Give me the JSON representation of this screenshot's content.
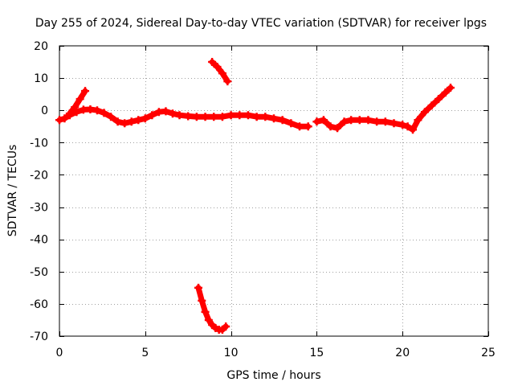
{
  "chart_data": {
    "type": "scatter",
    "title": "Day 255 of 2024, Sidereal Day-to-day VTEC variation (SDTVAR) for receiver lpgs",
    "xlabel": "GPS time / hours",
    "ylabel": "SDTVAR / TECUs",
    "xlim": [
      0,
      25
    ],
    "ylim": [
      -70,
      20
    ],
    "xticks": [
      0,
      5,
      10,
      15,
      20,
      25
    ],
    "yticks": [
      20,
      10,
      0,
      -10,
      -20,
      -30,
      -40,
      -50,
      -60,
      -70
    ],
    "grid": true,
    "marker": "plus",
    "color": "#ff0000",
    "series": [
      {
        "name": "main",
        "points": [
          [
            0.0,
            -3.0
          ],
          [
            0.3,
            -2.5
          ],
          [
            0.6,
            -1.5
          ],
          [
            1.0,
            -0.5
          ],
          [
            1.4,
            0.2
          ],
          [
            1.8,
            0.3
          ],
          [
            2.2,
            0.0
          ],
          [
            2.6,
            -0.8
          ],
          [
            3.0,
            -2.0
          ],
          [
            3.4,
            -3.5
          ],
          [
            3.8,
            -4.0
          ],
          [
            4.2,
            -3.5
          ],
          [
            4.6,
            -3.0
          ],
          [
            5.0,
            -2.5
          ],
          [
            5.4,
            -1.5
          ],
          [
            5.8,
            -0.5
          ],
          [
            6.2,
            -0.3
          ],
          [
            6.6,
            -1.0
          ],
          [
            7.0,
            -1.5
          ],
          [
            7.5,
            -1.8
          ],
          [
            8.0,
            -2.0
          ],
          [
            8.5,
            -2.0
          ],
          [
            9.0,
            -2.0
          ],
          [
            9.5,
            -2.0
          ],
          [
            10.0,
            -1.5
          ],
          [
            10.5,
            -1.5
          ],
          [
            11.0,
            -1.5
          ],
          [
            11.5,
            -2.0
          ],
          [
            12.0,
            -2.0
          ],
          [
            12.5,
            -2.5
          ],
          [
            13.0,
            -3.0
          ],
          [
            13.5,
            -4.0
          ],
          [
            14.0,
            -5.0
          ],
          [
            14.5,
            -5.0
          ]
        ]
      },
      {
        "name": "early-rise",
        "points": [
          [
            0.6,
            -1.0
          ],
          [
            0.9,
            1.0
          ],
          [
            1.2,
            3.5
          ],
          [
            1.5,
            6.0
          ]
        ]
      },
      {
        "name": "main-2",
        "points": [
          [
            15.0,
            -3.5
          ],
          [
            15.4,
            -3.0
          ],
          [
            15.8,
            -5.0
          ],
          [
            16.2,
            -5.5
          ],
          [
            16.6,
            -3.5
          ],
          [
            17.0,
            -3.0
          ],
          [
            17.5,
            -3.0
          ],
          [
            18.0,
            -3.0
          ],
          [
            18.5,
            -3.5
          ],
          [
            19.0,
            -3.5
          ],
          [
            19.5,
            -4.0
          ],
          [
            20.0,
            -4.5
          ],
          [
            20.3,
            -5.0
          ],
          [
            20.6,
            -6.0
          ],
          [
            20.9,
            -3.0
          ],
          [
            21.3,
            -0.5
          ],
          [
            21.7,
            1.5
          ],
          [
            22.1,
            3.5
          ],
          [
            22.5,
            5.5
          ],
          [
            22.8,
            7.0
          ]
        ]
      },
      {
        "name": "upper-arc",
        "points": [
          [
            8.9,
            15.0
          ],
          [
            9.2,
            13.5
          ],
          [
            9.5,
            11.5
          ],
          [
            9.8,
            9.0
          ]
        ]
      },
      {
        "name": "lower-arc",
        "points": [
          [
            8.1,
            -55.0
          ],
          [
            8.3,
            -59.0
          ],
          [
            8.5,
            -62.5
          ],
          [
            8.7,
            -65.0
          ],
          [
            8.9,
            -66.5
          ],
          [
            9.1,
            -67.5
          ],
          [
            9.3,
            -68.0
          ],
          [
            9.5,
            -68.0
          ],
          [
            9.7,
            -67.0
          ]
        ]
      }
    ]
  }
}
